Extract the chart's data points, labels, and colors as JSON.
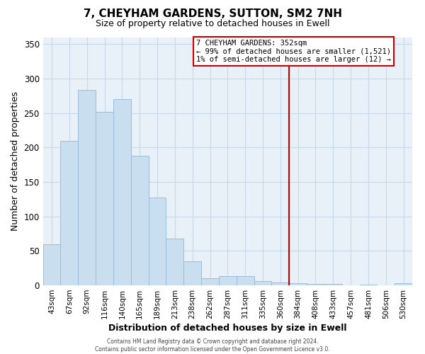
{
  "title": "7, CHEYHAM GARDENS, SUTTON, SM2 7NH",
  "subtitle": "Size of property relative to detached houses in Ewell",
  "xlabel": "Distribution of detached houses by size in Ewell",
  "ylabel": "Number of detached properties",
  "bar_labels": [
    "43sqm",
    "67sqm",
    "92sqm",
    "116sqm",
    "140sqm",
    "165sqm",
    "189sqm",
    "213sqm",
    "238sqm",
    "262sqm",
    "287sqm",
    "311sqm",
    "335sqm",
    "360sqm",
    "384sqm",
    "408sqm",
    "433sqm",
    "457sqm",
    "481sqm",
    "506sqm",
    "530sqm"
  ],
  "bar_heights": [
    60,
    210,
    283,
    252,
    270,
    188,
    127,
    68,
    35,
    10,
    13,
    13,
    6,
    4,
    3,
    2,
    2,
    0,
    1,
    0,
    3
  ],
  "bar_color": "#c9dff0",
  "bar_edge_color": "#9bbdd8",
  "vline_x_index": 13,
  "vline_color": "#cc0000",
  "annotation_box_text": "7 CHEYHAM GARDENS: 352sqm\n← 99% of detached houses are smaller (1,521)\n1% of semi-detached houses are larger (12) →",
  "annotation_box_edge_color": "#cc0000",
  "ylim": [
    0,
    360
  ],
  "yticks": [
    0,
    50,
    100,
    150,
    200,
    250,
    300,
    350
  ],
  "grid_color": "#c8d8e8",
  "footer_text": "Contains HM Land Registry data © Crown copyright and database right 2024.\nContains public sector information licensed under the Open Government Licence v3.0.",
  "bg_color": "#e8f0f8",
  "title_fontsize": 11,
  "subtitle_fontsize": 9,
  "tick_fontsize": 7.5,
  "ylabel_fontsize": 9,
  "xlabel_fontsize": 9
}
